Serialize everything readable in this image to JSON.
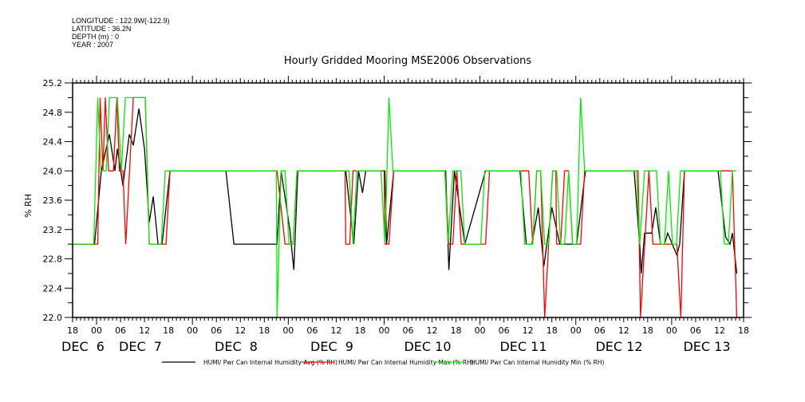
{
  "header": {
    "longitude": "LONGITUDE : 122.9W(-122.9)",
    "latitude": "LATITUDE : 36.2N",
    "depth": "DEPTH (m) : 0",
    "year": "YEAR : 2007"
  },
  "chart_data": {
    "type": "line",
    "title": "Hourly Gridded Mooring MSE2006 Observations",
    "xlabel": "",
    "ylabel": "% RH",
    "x_units": "hours since DEC 5 18:00",
    "xlim": [
      0,
      168
    ],
    "ylim": [
      22.0,
      25.2
    ],
    "yticks": [
      "22.0",
      "22.4",
      "22.8",
      "23.2",
      "23.6",
      "24.0",
      "24.4",
      "24.8",
      "25.2"
    ],
    "xtick_labels": [
      "18",
      "00",
      "06",
      "12",
      "18",
      "00",
      "06",
      "12",
      "18",
      "00",
      "06",
      "12",
      "18",
      "00",
      "06",
      "12",
      "18",
      "00",
      "06",
      "12",
      "18",
      "00",
      "06",
      "12",
      "18",
      "00",
      "06",
      "12",
      "18"
    ],
    "date_labels": [
      "DEC  6",
      "DEC  7",
      "DEC  8",
      "DEC  9",
      "DEC 10",
      "DEC 11",
      "DEC 12",
      "DEC 13"
    ],
    "legend_position": "bottom",
    "series": [
      {
        "name": "HUMI/ Pwr Can Internal Humidity Avg (% RH)",
        "color": "#000000",
        "points": [
          [
            0,
            23.0
          ],
          [
            5.5,
            23.0
          ],
          [
            7.2,
            24.0
          ],
          [
            9.2,
            24.5
          ],
          [
            10.6,
            24.0
          ],
          [
            11.2,
            24.3
          ],
          [
            12.6,
            23.8
          ],
          [
            14.2,
            24.5
          ],
          [
            15.2,
            24.35
          ],
          [
            16.6,
            24.85
          ],
          [
            18,
            24.3
          ],
          [
            19.2,
            23.3
          ],
          [
            20.2,
            23.65
          ],
          [
            21.4,
            23.0
          ],
          [
            22.4,
            23.0
          ],
          [
            24.4,
            24.0
          ],
          [
            38.4,
            24.0
          ],
          [
            40.4,
            23.0
          ],
          [
            51.2,
            23.0
          ],
          [
            52.2,
            24.0
          ],
          [
            54.4,
            23.2
          ],
          [
            55.4,
            22.65
          ],
          [
            56.4,
            24.0
          ],
          [
            68.4,
            24.0
          ],
          [
            70.4,
            23.0
          ],
          [
            71.6,
            24.0
          ],
          [
            72.6,
            23.7
          ],
          [
            73.4,
            24.0
          ],
          [
            78.2,
            24.0
          ],
          [
            78.6,
            23.0
          ],
          [
            80.4,
            24.0
          ],
          [
            93.4,
            24.0
          ],
          [
            94.2,
            22.65
          ],
          [
            95.6,
            24.0
          ],
          [
            98.2,
            23.0
          ],
          [
            103.4,
            24.0
          ],
          [
            112,
            24.0
          ],
          [
            113.6,
            23.0
          ],
          [
            115,
            23.0
          ],
          [
            116.6,
            23.5
          ],
          [
            118,
            22.7
          ],
          [
            120,
            23.5
          ],
          [
            122,
            23.0
          ],
          [
            126.2,
            23.0
          ],
          [
            128.4,
            24.0
          ],
          [
            140.6,
            24.0
          ],
          [
            142,
            23.0
          ],
          [
            142.4,
            22.6
          ],
          [
            143.2,
            23.15
          ],
          [
            145,
            23.15
          ],
          [
            146,
            23.5
          ],
          [
            147.2,
            23.0
          ],
          [
            148.2,
            23.0
          ],
          [
            149,
            23.15
          ],
          [
            151.3,
            22.85
          ],
          [
            152,
            23.0
          ],
          [
            153.2,
            24.0
          ],
          [
            161.6,
            24.0
          ],
          [
            163.5,
            23.1
          ],
          [
            164.6,
            23.0
          ],
          [
            165.2,
            23.15
          ],
          [
            166.3,
            22.6
          ]
        ]
      },
      {
        "name": "HUMI/ Pwr Can Internal Humidity Max (% RH)",
        "color": "#ff0000",
        "points": [
          [
            0,
            23.0
          ],
          [
            6.3,
            23.0
          ],
          [
            6.9,
            25.0
          ],
          [
            7.6,
            24.0
          ],
          [
            8.2,
            25.0
          ],
          [
            9,
            24.0
          ],
          [
            10.2,
            24.0
          ],
          [
            11.1,
            25.0
          ],
          [
            11.7,
            24.0
          ],
          [
            12.6,
            24.0
          ],
          [
            13.3,
            23.0
          ],
          [
            15.2,
            25.0
          ],
          [
            18.2,
            25.0
          ],
          [
            19.2,
            23.0
          ],
          [
            23.4,
            23.0
          ],
          [
            24.4,
            24.0
          ],
          [
            51.2,
            24.0
          ],
          [
            53.2,
            23.0
          ],
          [
            55.2,
            23.0
          ],
          [
            56.2,
            24.0
          ],
          [
            68.2,
            24.0
          ],
          [
            68.4,
            23.0
          ],
          [
            69.4,
            23.0
          ],
          [
            70.2,
            24.0
          ],
          [
            78,
            24.0
          ],
          [
            78.2,
            23.0
          ],
          [
            79.2,
            23.0
          ],
          [
            80.4,
            24.0
          ],
          [
            93.2,
            24.0
          ],
          [
            94.2,
            23.0
          ],
          [
            95.2,
            23.0
          ],
          [
            96.2,
            24.0
          ],
          [
            97.3,
            23.0
          ],
          [
            103.4,
            23.0
          ],
          [
            104.4,
            24.0
          ],
          [
            114.2,
            24.0
          ],
          [
            115.2,
            23.0
          ],
          [
            116.2,
            24.0
          ],
          [
            117.2,
            24.0
          ],
          [
            118.2,
            22.0
          ],
          [
            119.2,
            23.0
          ],
          [
            120.2,
            24.0
          ],
          [
            121,
            24.0
          ],
          [
            121.2,
            23.0
          ],
          [
            122.2,
            23.0
          ],
          [
            123.2,
            24.0
          ],
          [
            124.2,
            24.0
          ],
          [
            125.2,
            23.0
          ],
          [
            127.2,
            23.0
          ],
          [
            128.2,
            24.0
          ],
          [
            141.6,
            24.0
          ],
          [
            142.2,
            22.0
          ],
          [
            144.3,
            24.0
          ],
          [
            145.3,
            23.0
          ],
          [
            151.3,
            23.0
          ],
          [
            152.3,
            22.0
          ],
          [
            153.2,
            24.0
          ],
          [
            165.2,
            24.0
          ],
          [
            166.3,
            22.0
          ]
        ]
      },
      {
        "name": "HUMI/ Pwr Can Internal Humidity Min (% RH)",
        "color": "#00ee00",
        "points": [
          [
            0,
            23.0
          ],
          [
            5.3,
            23.0
          ],
          [
            6.3,
            25.0
          ],
          [
            7.1,
            24.0
          ],
          [
            8.4,
            24.0
          ],
          [
            9.2,
            25.0
          ],
          [
            11.2,
            25.0
          ],
          [
            12.2,
            24.0
          ],
          [
            13.2,
            25.0
          ],
          [
            18.2,
            25.0
          ],
          [
            19.2,
            23.0
          ],
          [
            22.2,
            23.0
          ],
          [
            23.2,
            24.0
          ],
          [
            51.0,
            24.0
          ],
          [
            51.2,
            22.0
          ],
          [
            52.2,
            24.0
          ],
          [
            53.2,
            24.0
          ],
          [
            54.2,
            23.0
          ],
          [
            55.2,
            23.0
          ],
          [
            56.2,
            24.0
          ],
          [
            69.2,
            24.0
          ],
          [
            70.2,
            23.0
          ],
          [
            71.2,
            24.0
          ],
          [
            77.2,
            24.0
          ],
          [
            78.2,
            23.0
          ],
          [
            79.2,
            25.0
          ],
          [
            80.2,
            24.0
          ],
          [
            93.2,
            24.0
          ],
          [
            94,
            23.0
          ],
          [
            95.2,
            24.0
          ],
          [
            97.2,
            24.0
          ],
          [
            98.2,
            23.0
          ],
          [
            102.2,
            23.0
          ],
          [
            103.2,
            24.0
          ],
          [
            112.2,
            24.0
          ],
          [
            113.2,
            23.0
          ],
          [
            115.2,
            23.0
          ],
          [
            116.2,
            24.0
          ],
          [
            117.2,
            24.0
          ],
          [
            118.2,
            23.0
          ],
          [
            119.2,
            23.0
          ],
          [
            120.2,
            24.0
          ],
          [
            121.2,
            24.0
          ],
          [
            122.2,
            23.0
          ],
          [
            123.2,
            23.0
          ],
          [
            124.2,
            24.0
          ],
          [
            125.2,
            23.0
          ],
          [
            126.2,
            23.0
          ],
          [
            127.2,
            25.0
          ],
          [
            128.2,
            24.0
          ],
          [
            141.2,
            24.0
          ],
          [
            142,
            23.0
          ],
          [
            143.2,
            24.0
          ],
          [
            146.2,
            24.0
          ],
          [
            147.2,
            23.0
          ],
          [
            148.2,
            23.0
          ],
          [
            149.2,
            24.0
          ],
          [
            150.2,
            23.0
          ],
          [
            151.2,
            23.0
          ],
          [
            152.2,
            24.0
          ],
          [
            162.2,
            24.0
          ],
          [
            163.2,
            23.0
          ],
          [
            164.2,
            23.0
          ],
          [
            165.2,
            24.0
          ],
          [
            166.2,
            24.0
          ]
        ]
      }
    ]
  }
}
